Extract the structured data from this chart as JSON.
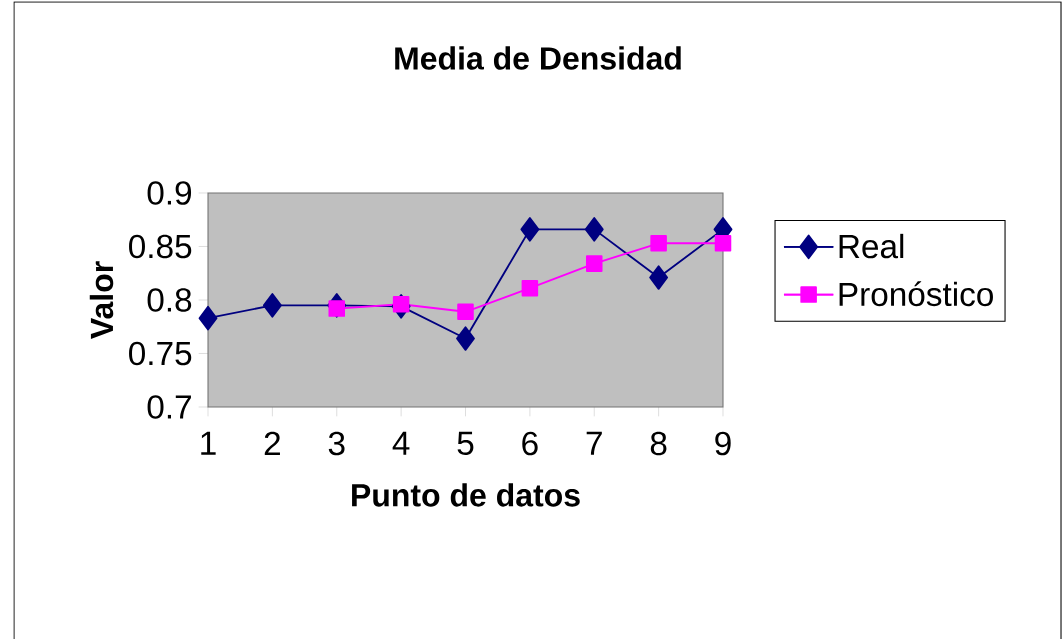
{
  "chart_data": {
    "type": "line",
    "title": "Media de Densidad",
    "xlabel": "Punto de datos",
    "ylabel": "Valor",
    "categories": [
      "1",
      "2",
      "3",
      "4",
      "5",
      "6",
      "7",
      "8",
      "9"
    ],
    "series": [
      {
        "name": "Real",
        "color": "#000080",
        "marker": "diamond",
        "values": [
          0.783,
          0.795,
          0.795,
          0.794,
          0.764,
          0.866,
          0.866,
          0.821,
          0.866
        ]
      },
      {
        "name": "Pronóstico",
        "color": "#ff00ff",
        "marker": "square",
        "values": [
          null,
          null,
          0.792,
          0.796,
          0.789,
          0.811,
          0.834,
          0.853,
          0.853
        ]
      }
    ],
    "ylim": [
      0.7,
      0.9
    ],
    "yticks": [
      0.7,
      0.75,
      0.8,
      0.85,
      0.9
    ],
    "grid": false,
    "legend": "right"
  }
}
